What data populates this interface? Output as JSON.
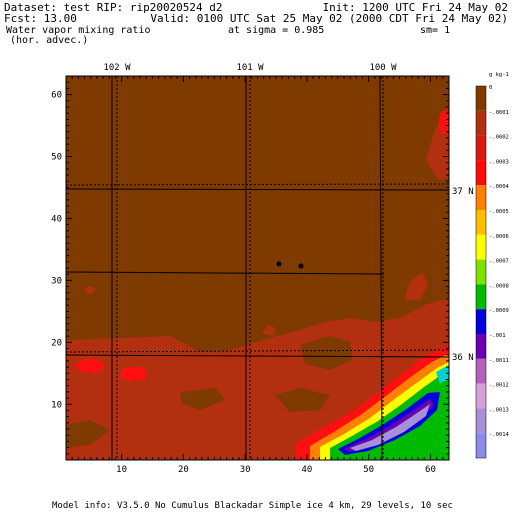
{
  "header": {
    "dataset": "Dataset: test   RIP: rip20020524 d2",
    "init": "Init: 1200 UTC Fri 24 May 02",
    "fcst": "Fcst:    13.00",
    "valid": "Valid: 0100 UTC Sat 25 May 02 (2000 CDT Fri 24 May 02)",
    "field": "Water vapor mixing ratio",
    "sigma": "at sigma = 0.985",
    "sm": "sm= 1",
    "field_sub": "(hor. advec.)"
  },
  "footer": {
    "model_info": "Model info: V3.5.0 No Cumulus Blackadar  Simple ice    4 km,  29 levels,   10 sec"
  },
  "chart_data": {
    "type": "heatmap",
    "xlim": [
      1,
      63
    ],
    "ylim": [
      1,
      63
    ],
    "x_ticks": [
      10,
      20,
      30,
      40,
      50,
      60
    ],
    "y_ticks": [
      10,
      20,
      30,
      40,
      50,
      60
    ],
    "longitude_labels": [
      "102 W",
      "101 W",
      "100 W"
    ],
    "latitude_labels": [
      "37 N",
      "36 N"
    ],
    "colorbar": {
      "unit": "g kg-1",
      "levels": [
        {
          "label": "0",
          "color": "#7f3a00"
        },
        {
          "label": "-.0001",
          "color": "#b23010"
        },
        {
          "label": "-.0002",
          "color": "#d81a10"
        },
        {
          "label": "-.0003",
          "color": "#ff0808"
        },
        {
          "label": "-.0004",
          "color": "#ff7f00"
        },
        {
          "label": "-.0005",
          "color": "#ffbe00"
        },
        {
          "label": "-.0006",
          "color": "#ffff00"
        },
        {
          "label": "-.0007",
          "color": "#80e000"
        },
        {
          "label": "-.0008",
          "color": "#00bb00"
        },
        {
          "label": "-.0009",
          "color": "#0000e0"
        },
        {
          "label": "-.001",
          "color": "#6a00b0"
        },
        {
          "label": "-.0011",
          "color": "#b460c0"
        },
        {
          "label": "-.0012",
          "color": "#d8a0d8"
        },
        {
          "label": "-.0013",
          "color": "#a890d8"
        },
        {
          "label": "-.0014",
          "color": "#8c8ce8"
        }
      ]
    },
    "colors": {
      "background_brown": "#7f3a00",
      "red_band": "#b23010",
      "bright_red": "#ff1010"
    }
  }
}
